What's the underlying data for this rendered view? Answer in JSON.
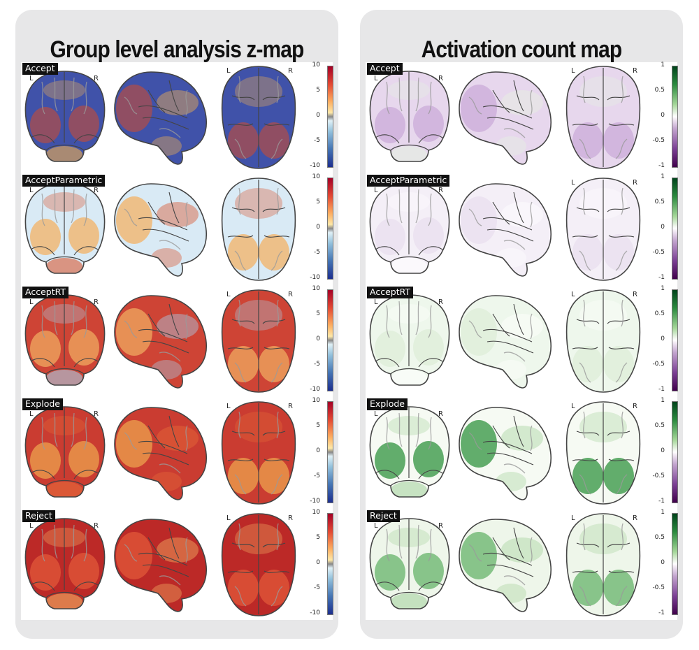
{
  "panels": [
    {
      "title": "Group level analysis z-map",
      "colormap": "diverging-red-blue",
      "colorbar_ticks": [
        "10",
        "5",
        "0",
        "-5",
        "-10"
      ],
      "rows": [
        {
          "label": "Accept",
          "shows_LR": true
        },
        {
          "label": "AcceptParametric",
          "shows_LR": false
        },
        {
          "label": "AcceptRT",
          "shows_LR": true
        },
        {
          "label": "Explode",
          "shows_LR": true
        },
        {
          "label": "Reject",
          "shows_LR": true
        }
      ]
    },
    {
      "title": "Activation count map",
      "colormap": "diverging-green-purple",
      "colorbar_ticks": [
        "1",
        "0.5",
        "0",
        "-0.5",
        "-1"
      ],
      "rows": [
        {
          "label": "Accept",
          "shows_LR": true
        },
        {
          "label": "AcceptParametric",
          "shows_LR": true
        },
        {
          "label": "AcceptRT",
          "shows_LR": true
        },
        {
          "label": "Explode",
          "shows_LR": true
        },
        {
          "label": "Reject",
          "shows_LR": true
        }
      ]
    }
  ],
  "lr_labels": {
    "left": "L",
    "right": "R"
  },
  "colors": {
    "zmap_positive": "#c0281f",
    "zmap_negative": "#243b9c",
    "count_positive": "#1b7a2c",
    "count_negative": "#6e2a8a",
    "panel_bg": "#e7e7e8"
  }
}
